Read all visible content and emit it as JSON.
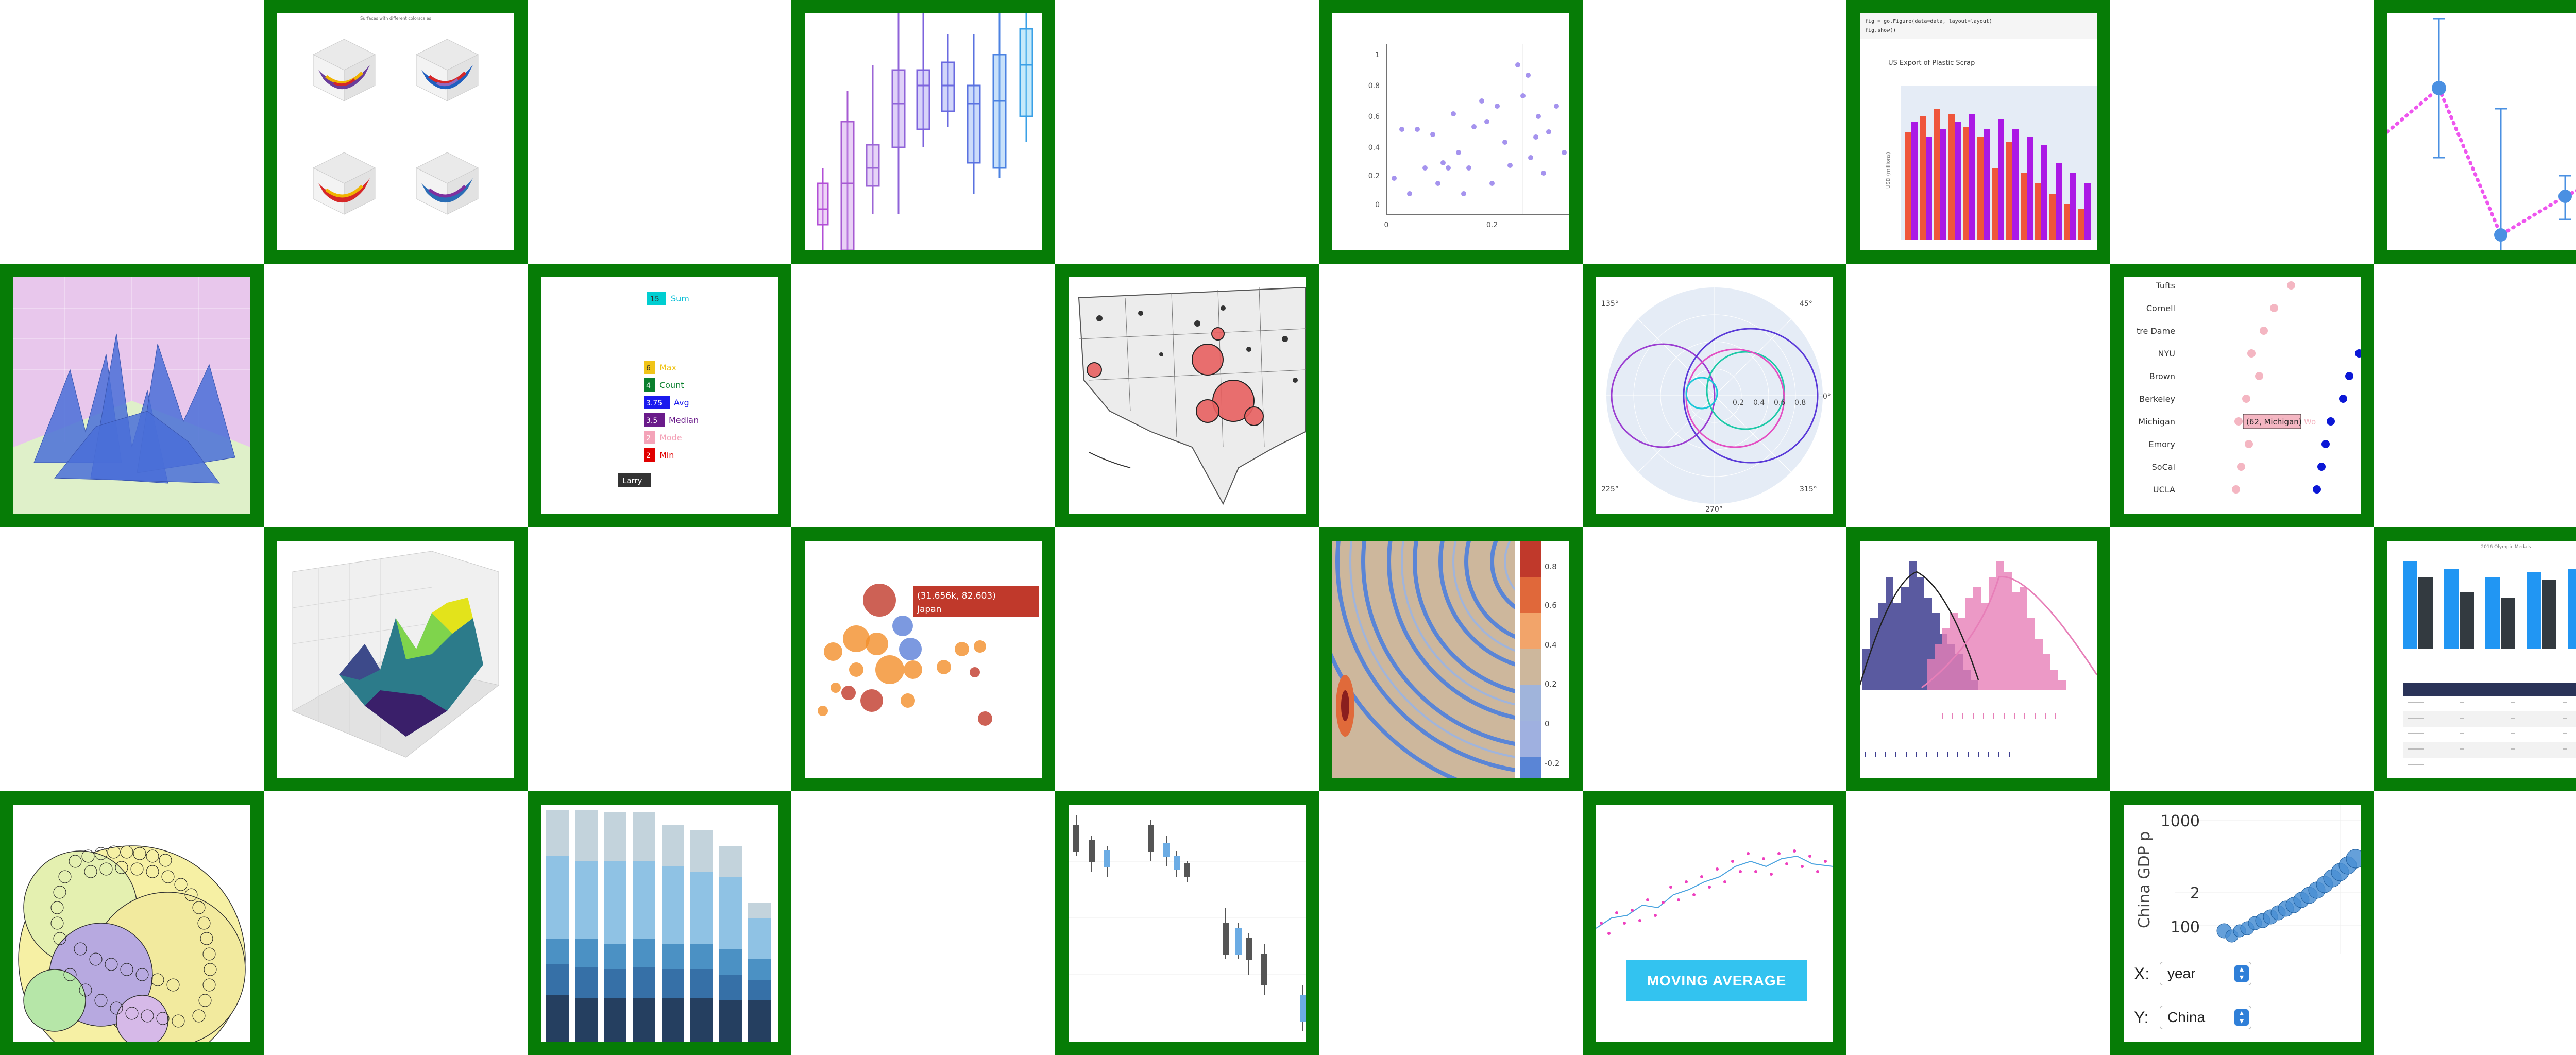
{
  "colors": {
    "frame": "#067c06",
    "background": "#ffffff"
  },
  "gallery": {
    "tiles": [
      {
        "id": "surface-subplots",
        "title": "Surfaces with different colorscales"
      },
      {
        "id": "box-plots"
      },
      {
        "id": "scatter-points",
        "yticks": [
          "1",
          "0.8",
          "0.6",
          "0.4",
          "0.2",
          "0"
        ],
        "xticks": [
          "0",
          "0.2"
        ]
      },
      {
        "id": "bar-chart-notebook",
        "code_line1": "fig = go.Figure(data=data, layout=layout)",
        "code_line2": "fig.show()",
        "title": "US Export of Plastic Scrap",
        "ylabel": "USD (millions)"
      },
      {
        "id": "error-bars"
      },
      {
        "id": "surface-3d-purple"
      },
      {
        "id": "aggregations",
        "labels": [
          "Sum",
          "Max",
          "Count",
          "Avg",
          "Median",
          "Mode",
          "Min"
        ],
        "badges": [
          "15",
          "6",
          "4",
          "3.75",
          "3.5",
          "2",
          "2"
        ],
        "name_tag": "Larry"
      },
      {
        "id": "bubble-map"
      },
      {
        "id": "polar-circles",
        "angles": [
          "135°",
          "45°",
          "0°",
          "225°",
          "315°",
          "270°"
        ],
        "radii": [
          "0.2",
          "0.4",
          "0.6",
          "0.8"
        ]
      },
      {
        "id": "dot-plot",
        "schools": [
          "Tufts",
          "Cornell",
          "tre Dame",
          "NYU",
          "Brown",
          "Berkeley",
          "Michigan",
          "Emory",
          "SoCal",
          "UCLA"
        ],
        "tooltip": "(62, Michigan)",
        "tooltip_trail": "Wo"
      },
      {
        "id": "surface-3d-viridis"
      },
      {
        "id": "bubble-chart",
        "tooltip_line1": "(31.656k, 82.603)",
        "tooltip_line2": "Japan"
      },
      {
        "id": "contour-plot",
        "colorbar": [
          "0.8",
          "0.6",
          "0.4",
          "0.2",
          "0",
          "-0.2"
        ]
      },
      {
        "id": "distribution-plot"
      },
      {
        "id": "bar-table",
        "title": "2016 Olympic Medals"
      },
      {
        "id": "sphere-scatter"
      },
      {
        "id": "stacked-bar"
      },
      {
        "id": "candlestick"
      },
      {
        "id": "moving-average",
        "button_label": "MOVING AVERAGE"
      },
      {
        "id": "gdp-dropdown",
        "ylabel": "China GDP p",
        "yticks": [
          "1000",
          "2",
          "100"
        ],
        "x_label": "X:",
        "x_value": "year",
        "y_label": "Y:",
        "y_value": "China"
      }
    ]
  }
}
